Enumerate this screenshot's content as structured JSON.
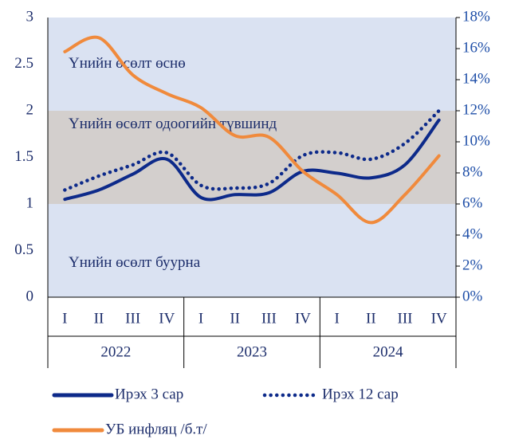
{
  "chart_data": {
    "type": "line",
    "annotations": [
      {
        "text": "Үнийн өсөлт өснө",
        "y": 2.5
      },
      {
        "text": "Үнийн өсөлт одоогийн түвшинд",
        "y": 1.85
      },
      {
        "text": "Үнийн өсөлт буурна",
        "y": 0.36
      }
    ],
    "bands": [
      {
        "from": 0,
        "to": 3,
        "color": "#dae2f2"
      },
      {
        "from": 1,
        "to": 2,
        "color": "#d3cfcd"
      }
    ],
    "categories": [
      "I",
      "II",
      "III",
      "IV",
      "I",
      "II",
      "III",
      "IV",
      "I",
      "II",
      "III",
      "IV"
    ],
    "groups": [
      "2022",
      "2023",
      "2024"
    ],
    "series": [
      {
        "name": "Ирэх 3 сар",
        "color": "#0d2a8a",
        "style": "solid",
        "axis": "y",
        "values": [
          1.05,
          1.15,
          1.32,
          1.48,
          1.07,
          1.1,
          1.12,
          1.35,
          1.33,
          1.28,
          1.42,
          1.9
        ]
      },
      {
        "name": "Ирэх 12 сар",
        "color": "#0d2a8a",
        "style": "dotted",
        "axis": "y",
        "values": [
          1.15,
          1.3,
          1.42,
          1.55,
          1.2,
          1.17,
          1.22,
          1.52,
          1.55,
          1.48,
          1.65,
          2.0
        ]
      },
      {
        "name": "УБ инфляц /б.т/",
        "color": "#f08a3c",
        "style": "solid",
        "axis": "y2",
        "values": [
          15.8,
          16.7,
          14.3,
          13.1,
          12.2,
          10.4,
          10.3,
          8.1,
          6.6,
          4.8,
          6.6,
          9.1
        ]
      }
    ],
    "ylim": [
      0,
      3
    ],
    "yticks": [
      0,
      0.5,
      1,
      1.5,
      2,
      2.5,
      3
    ],
    "y2lim": [
      0,
      18
    ],
    "y2ticks": [
      {
        "value": 0,
        "label": "0%"
      },
      {
        "value": 2,
        "label": "2%"
      },
      {
        "value": 4,
        "label": "4%"
      },
      {
        "value": 6,
        "label": "6%"
      },
      {
        "value": 8,
        "label": "8%"
      },
      {
        "value": 10,
        "label": "10%"
      },
      {
        "value": 12,
        "label": "12%"
      },
      {
        "value": 14,
        "label": "14%"
      },
      {
        "value": 16,
        "label": "16%"
      },
      {
        "value": 18,
        "label": "18%"
      }
    ]
  }
}
